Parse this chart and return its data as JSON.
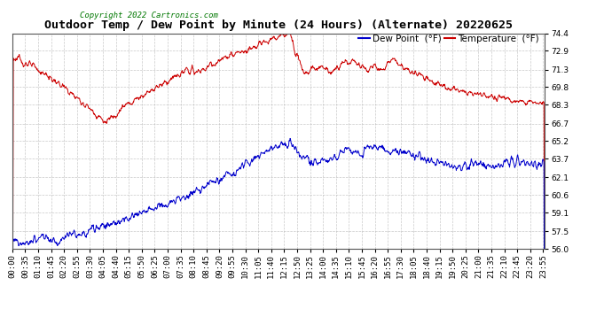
{
  "title": "Outdoor Temp / Dew Point by Minute (24 Hours) (Alternate) 20220625",
  "copyright": "Copyright 2022 Cartronics.com",
  "legend_dew": "Dew Point  (°F)",
  "legend_temp": "Temperature  (°F)",
  "dew_color": "#0000cc",
  "temp_color": "#cc0000",
  "background_color": "#ffffff",
  "grid_color": "#bbbbbb",
  "ylim": [
    56.0,
    74.4
  ],
  "yticks": [
    56.0,
    57.5,
    59.1,
    60.6,
    62.1,
    63.7,
    65.2,
    66.7,
    68.3,
    69.8,
    71.3,
    72.9,
    74.4
  ],
  "title_fontsize": 9.5,
  "tick_fontsize": 6.5,
  "legend_fontsize": 7.5
}
